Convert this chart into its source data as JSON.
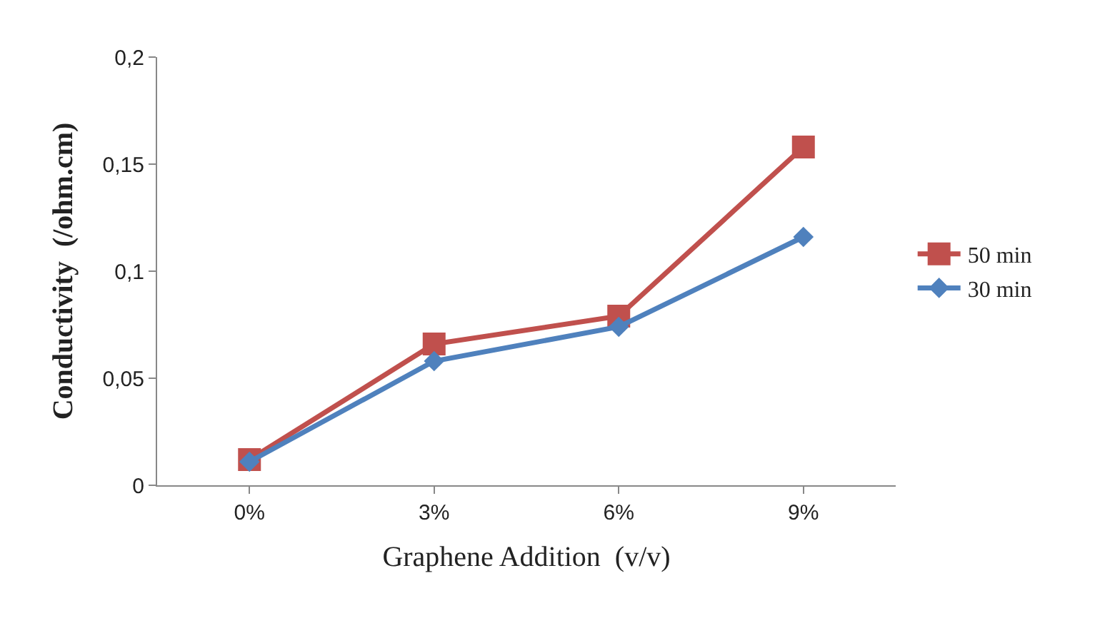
{
  "chart_data": {
    "type": "line",
    "xlabel": "Graphene Addition  (v/v)",
    "ylabel": "Conductivity  (/ohm.cm)",
    "categories": [
      "0%",
      "3%",
      "6%",
      "9%"
    ],
    "series": [
      {
        "name": "50 min",
        "color": "#c0504d",
        "marker": "square",
        "values": [
          0.012,
          0.066,
          0.079,
          0.158
        ]
      },
      {
        "name": "30 min",
        "color": "#4f81bd",
        "marker": "diamond",
        "values": [
          0.011,
          0.058,
          0.074,
          0.116
        ]
      }
    ],
    "ylim": [
      0,
      0.2
    ],
    "yticks": [
      0,
      {
        "value": 0.05,
        "label": "0,05"
      },
      {
        "value": 0.1,
        "label": "0,1"
      },
      {
        "value": 0.15,
        "label": "0,15"
      },
      {
        "value": 0.2,
        "label": "0,2"
      }
    ],
    "legend": "right",
    "line_style": "solid"
  }
}
